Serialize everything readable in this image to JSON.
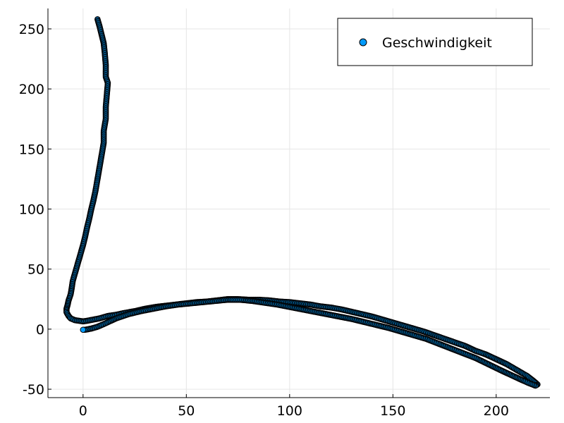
{
  "chart_data": {
    "type": "scatter",
    "title": "",
    "xlabel": "",
    "ylabel": "",
    "xlim": [
      -17,
      226
    ],
    "ylim": [
      -57,
      267
    ],
    "xticks": [
      0,
      50,
      100,
      150,
      200
    ],
    "yticks": [
      -50,
      0,
      50,
      100,
      150,
      200,
      250
    ],
    "xtick_labels": [
      "0",
      "50",
      "100",
      "150",
      "200"
    ],
    "ytick_labels": [
      "-50",
      "0",
      "50",
      "100",
      "150",
      "200",
      "250"
    ],
    "grid": true,
    "legend_position": "top-right",
    "series": [
      {
        "name": "Geschwindigkeit",
        "color": "#009AFA",
        "marker": "circle",
        "marker_edge": "#000000",
        "points": [
          [
            7,
            258
          ],
          [
            8,
            252
          ],
          [
            9,
            245
          ],
          [
            10,
            238
          ],
          [
            10.5,
            230
          ],
          [
            11,
            220
          ],
          [
            11,
            210
          ],
          [
            12,
            205
          ],
          [
            11.5,
            195
          ],
          [
            11,
            185
          ],
          [
            11,
            175
          ],
          [
            10,
            165
          ],
          [
            10,
            155
          ],
          [
            9,
            145
          ],
          [
            8,
            135
          ],
          [
            7,
            125
          ],
          [
            6,
            115
          ],
          [
            5,
            107
          ],
          [
            4,
            100
          ],
          [
            3,
            92
          ],
          [
            2,
            85
          ],
          [
            1,
            77
          ],
          [
            0,
            70
          ],
          [
            -1,
            64
          ],
          [
            -2,
            58
          ],
          [
            -3,
            52
          ],
          [
            -4,
            46
          ],
          [
            -5,
            40
          ],
          [
            -5.5,
            34
          ],
          [
            -6,
            29
          ],
          [
            -7,
            24
          ],
          [
            -7.5,
            20
          ],
          [
            -8,
            17
          ],
          [
            -8,
            14
          ],
          [
            -7,
            11
          ],
          [
            -6,
            9
          ],
          [
            -4,
            7.5
          ],
          [
            -2,
            7
          ],
          [
            0,
            6.5
          ],
          [
            2,
            7
          ],
          [
            5,
            8
          ],
          [
            8,
            9
          ],
          [
            12,
            11
          ],
          [
            16,
            12
          ],
          [
            20,
            13.5
          ],
          [
            25,
            15
          ],
          [
            30,
            17
          ],
          [
            35,
            18.5
          ],
          [
            40,
            19.5
          ],
          [
            45,
            20.5
          ],
          [
            50,
            21.5
          ],
          [
            55,
            22.5
          ],
          [
            60,
            23
          ],
          [
            65,
            24
          ],
          [
            70,
            25
          ],
          [
            75,
            25
          ],
          [
            80,
            24.5
          ],
          [
            85,
            24.5
          ],
          [
            90,
            24
          ],
          [
            95,
            23
          ],
          [
            100,
            22.5
          ],
          [
            105,
            21.5
          ],
          [
            110,
            20.5
          ],
          [
            115,
            19
          ],
          [
            120,
            18
          ],
          [
            125,
            16.5
          ],
          [
            130,
            14.5
          ],
          [
            135,
            12.5
          ],
          [
            140,
            10.5
          ],
          [
            145,
            8
          ],
          [
            150,
            5.5
          ],
          [
            155,
            3
          ],
          [
            160,
            0.5
          ],
          [
            165,
            -2
          ],
          [
            170,
            -5
          ],
          [
            175,
            -8
          ],
          [
            180,
            -11
          ],
          [
            185,
            -14
          ],
          [
            190,
            -18
          ],
          [
            195,
            -21
          ],
          [
            200,
            -25
          ],
          [
            205,
            -29
          ],
          [
            210,
            -34
          ],
          [
            215,
            -39
          ],
          [
            218,
            -43
          ],
          [
            220,
            -46
          ],
          [
            219,
            -47
          ],
          [
            216,
            -45
          ],
          [
            212,
            -42
          ],
          [
            207,
            -38
          ],
          [
            202,
            -34
          ],
          [
            196,
            -29
          ],
          [
            190,
            -24
          ],
          [
            184,
            -20
          ],
          [
            178,
            -16
          ],
          [
            172,
            -12
          ],
          [
            166,
            -8
          ],
          [
            160,
            -5
          ],
          [
            154,
            -2
          ],
          [
            148,
            1
          ],
          [
            142,
            3.5
          ],
          [
            136,
            6
          ],
          [
            130,
            8.5
          ],
          [
            124,
            10.5
          ],
          [
            118,
            12.5
          ],
          [
            112,
            14.5
          ],
          [
            106,
            16.5
          ],
          [
            100,
            18.5
          ],
          [
            94,
            20.5
          ],
          [
            88,
            22
          ],
          [
            82,
            23.5
          ],
          [
            76,
            24.5
          ],
          [
            70,
            24.5
          ],
          [
            64,
            23.5
          ],
          [
            58,
            22.5
          ],
          [
            52,
            21.5
          ],
          [
            46,
            20.5
          ],
          [
            40,
            19
          ],
          [
            34,
            17
          ],
          [
            28,
            15
          ],
          [
            22,
            12.5
          ],
          [
            16,
            9
          ],
          [
            11,
            5
          ],
          [
            7,
            2
          ],
          [
            4,
            0.5
          ],
          [
            1,
            -0.5
          ],
          [
            0,
            -0.5
          ]
        ]
      }
    ]
  }
}
